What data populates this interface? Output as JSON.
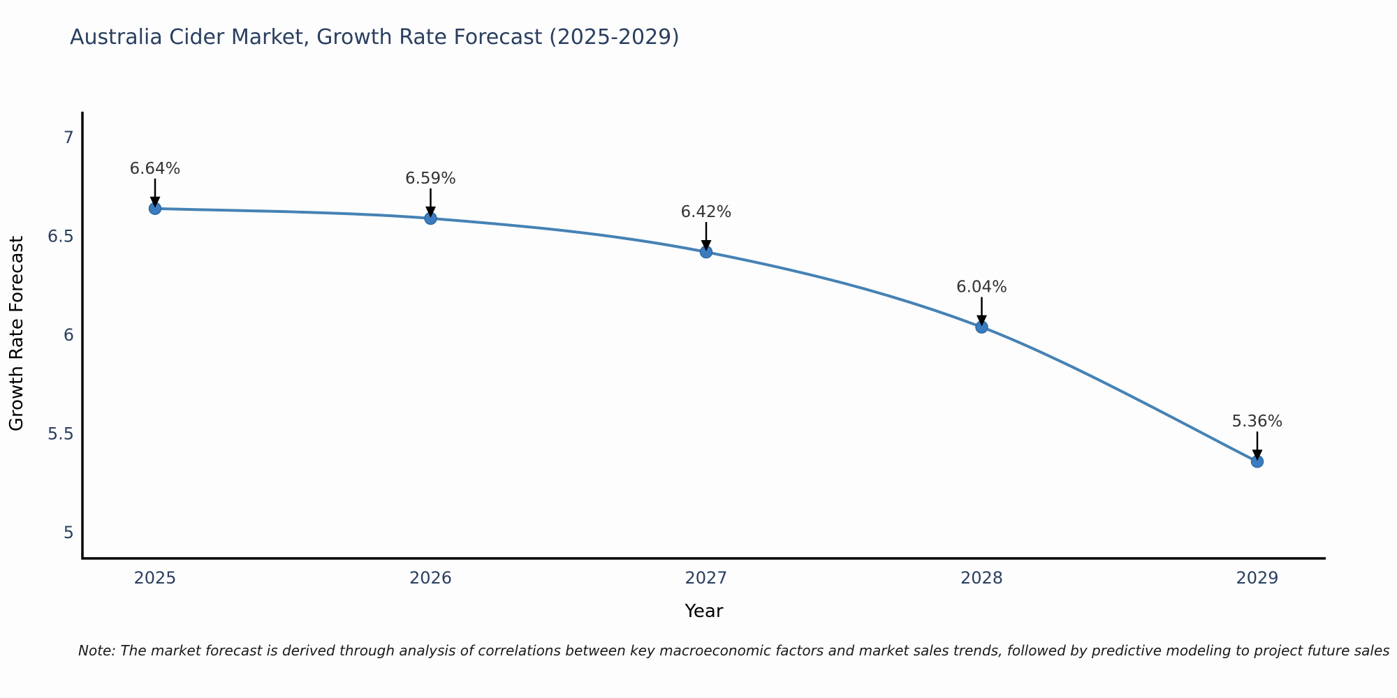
{
  "title": "Australia Cider Market, Growth Rate Forecast (2025-2029)",
  "note": "Note: The market forecast is derived through analysis of correlations between key macroeconomic factors and market sales trends, followed by predictive modeling to project future sales",
  "chart_data": {
    "type": "line",
    "title": "Australia Cider Market, Growth Rate Forecast (2025-2029)",
    "xlabel": "Year",
    "ylabel": "Growth Rate Forecast",
    "x": [
      2025,
      2026,
      2027,
      2028,
      2029
    ],
    "series": [
      {
        "name": "Growth Rate Forecast",
        "values": [
          6.64,
          6.59,
          6.42,
          6.04,
          5.36
        ],
        "point_labels": [
          "6.64%",
          "6.59%",
          "6.42%",
          "6.04%",
          "5.36%"
        ]
      }
    ],
    "yticks": [
      5,
      5.5,
      6,
      6.5,
      7
    ],
    "ylim": [
      4.87,
      7.13
    ],
    "grid": false,
    "legend_position": "none",
    "line_color": "#4682b4",
    "marker_color": "#3b7cc0",
    "marker_edge_color": "#2e6a9e",
    "axis_color": "#000000",
    "tick_color": "#2a3f5f",
    "annotation_color": "#333333",
    "arrow_color": "#000000",
    "smooth": true
  }
}
